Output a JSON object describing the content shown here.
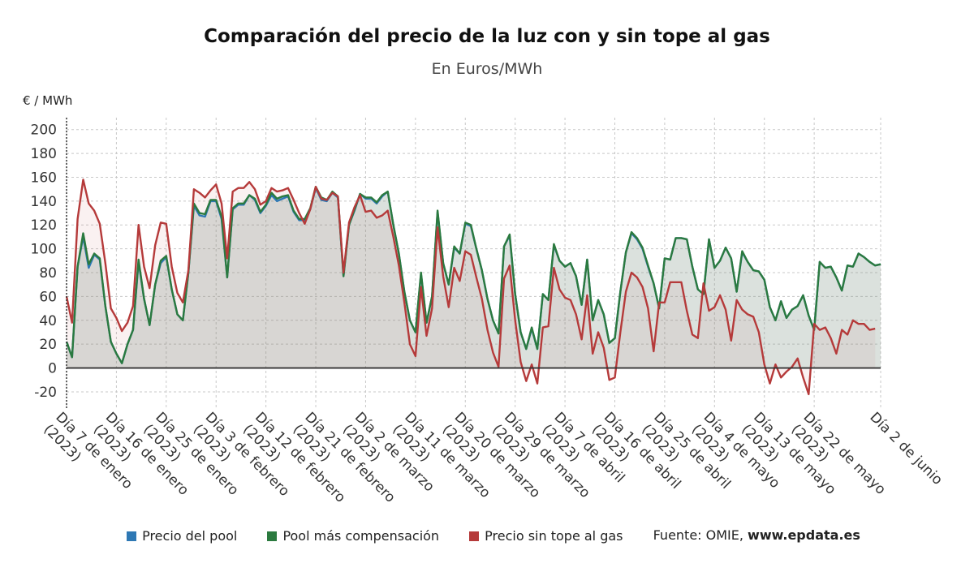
{
  "header": {
    "title": "Comparación del precio de la luz con y sin tope al gas",
    "subtitle": "En Euros/MWh"
  },
  "legend": {
    "items": [
      {
        "label": "Precio del pool",
        "color": "#2e78b4"
      },
      {
        "label": "Pool más compensación",
        "color": "#2b7a3f"
      },
      {
        "label": "Precio sin tope al gas",
        "color": "#b53a3a"
      }
    ],
    "source_prefix": "Fuente: OMIE,",
    "source_site": "www.epdata.es"
  },
  "chart_data": {
    "type": "line",
    "ylabel": "€ / MWh",
    "ylim": [
      -35,
      210
    ],
    "yticks": [
      200,
      180,
      160,
      140,
      120,
      100,
      80,
      60,
      40,
      20,
      0,
      -20
    ],
    "x_range": [
      0,
      147
    ],
    "xticks": [
      {
        "x": 0,
        "line1": "Día 7 de enero",
        "line2": "(2023)"
      },
      {
        "x": 9,
        "line1": "Día 16 de enero",
        "line2": "(2023)"
      },
      {
        "x": 18,
        "line1": "Día 25 de enero",
        "line2": "(2023)"
      },
      {
        "x": 27,
        "line1": "Día 3 de febrero",
        "line2": "(2023)"
      },
      {
        "x": 36,
        "line1": "Día 12 de febrero",
        "line2": "(2023)"
      },
      {
        "x": 45,
        "line1": "Día 21 de febrero",
        "line2": "(2023)"
      },
      {
        "x": 54,
        "line1": "Día 2 de marzo",
        "line2": "(2023)"
      },
      {
        "x": 63,
        "line1": "Día 11 de marzo",
        "line2": "(2023)"
      },
      {
        "x": 72,
        "line1": "Día 20 de marzo",
        "line2": "(2023)"
      },
      {
        "x": 81,
        "line1": "Día 29 de marzo",
        "line2": "(2023)"
      },
      {
        "x": 90,
        "line1": "Día 7 de abril",
        "line2": "(2023)"
      },
      {
        "x": 99,
        "line1": "Día 16 de abril",
        "line2": "(2023)"
      },
      {
        "x": 108,
        "line1": "Día 25 de abril",
        "line2": "(2023)"
      },
      {
        "x": 117,
        "line1": "Día 4 de mayo",
        "line2": "(2023)"
      },
      {
        "x": 126,
        "line1": "Día 13 de mayo",
        "line2": "(2023)"
      },
      {
        "x": 135,
        "line1": "Día 22 de mayo",
        "line2": "(2023)"
      },
      {
        "x": 147,
        "line1": "Día 2 de junio",
        "line2": ""
      }
    ],
    "series": [
      {
        "name": "Precio del pool",
        "color": "#2e78b4",
        "values": [
          22,
          9,
          85,
          110,
          84,
          95,
          91,
          52,
          22,
          12,
          4,
          20,
          32,
          89,
          58,
          36,
          70,
          88,
          93,
          66,
          45,
          40,
          80,
          136,
          128,
          127,
          140,
          140,
          125,
          76,
          133,
          137,
          137,
          145,
          141,
          130,
          136,
          145,
          140,
          142,
          144,
          131,
          124,
          124,
          133,
          151,
          141,
          140,
          147,
          143,
          77,
          120,
          132,
          146,
          142,
          142,
          138,
          144,
          148,
          120,
          96,
          64,
          40,
          30,
          79,
          38,
          60,
          131,
          88,
          70,
          101,
          96,
          121,
          119,
          100,
          82,
          58,
          40,
          29,
          102,
          111,
          62,
          30,
          16,
          33,
          16,
          62,
          57,
          103,
          90,
          85,
          88,
          77,
          53,
          91,
          40,
          57,
          45,
          21,
          25,
          64,
          97,
          113,
          108,
          100,
          85,
          71,
          50,
          92,
          91,
          109,
          109,
          108,
          85,
          66,
          62,
          108,
          84,
          90,
          101,
          92,
          64,
          97,
          89,
          82,
          81,
          74,
          51,
          40,
          56,
          42,
          49,
          52,
          61,
          44,
          32,
          89,
          84,
          85,
          76,
          65,
          86,
          85,
          96,
          93,
          89,
          86,
          87
        ]
      },
      {
        "name": "Pool más compensación",
        "color": "#2b7a3f",
        "values": [
          22,
          9,
          85,
          113,
          87,
          96,
          92,
          52,
          22,
          12,
          4,
          20,
          32,
          91,
          58,
          36,
          70,
          90,
          94,
          66,
          45,
          40,
          80,
          138,
          130,
          129,
          141,
          141,
          127,
          76,
          134,
          138,
          138,
          145,
          142,
          131,
          137,
          147,
          142,
          144,
          145,
          132,
          125,
          125,
          134,
          152,
          143,
          141,
          148,
          144,
          77,
          120,
          133,
          146,
          143,
          143,
          139,
          145,
          148,
          120,
          96,
          64,
          40,
          30,
          80,
          38,
          60,
          132,
          88,
          70,
          102,
          96,
          122,
          120,
          100,
          82,
          58,
          40,
          29,
          102,
          112,
          62,
          30,
          16,
          34,
          16,
          62,
          57,
          104,
          90,
          85,
          88,
          77,
          53,
          91,
          40,
          57,
          45,
          21,
          25,
          64,
          97,
          114,
          109,
          101,
          86,
          71,
          50,
          92,
          91,
          109,
          109,
          108,
          85,
          66,
          62,
          108,
          84,
          90,
          101,
          92,
          64,
          98,
          89,
          82,
          81,
          74,
          51,
          40,
          56,
          42,
          49,
          52,
          61,
          44,
          32,
          89,
          84,
          85,
          76,
          65,
          86,
          85,
          96,
          93,
          89,
          86,
          87
        ]
      },
      {
        "name": "Precio sin tope al gas",
        "color": "#b53a3a",
        "values": [
          60,
          38,
          125,
          158,
          138,
          132,
          121,
          88,
          50,
          42,
          31,
          38,
          52,
          120,
          85,
          67,
          103,
          122,
          121,
          85,
          63,
          55,
          82,
          150,
          147,
          143,
          149,
          154,
          138,
          92,
          148,
          151,
          151,
          156,
          150,
          137,
          140,
          151,
          148,
          149,
          151,
          141,
          130,
          121,
          133,
          152,
          142,
          141,
          147,
          144,
          80,
          122,
          135,
          145,
          131,
          132,
          126,
          128,
          132,
          110,
          86,
          55,
          20,
          10,
          68,
          27,
          50,
          118,
          77,
          51,
          84,
          73,
          98,
          95,
          76,
          58,
          32,
          13,
          1,
          75,
          86,
          40,
          5,
          -11,
          3,
          -13,
          34,
          35,
          84,
          66,
          59,
          57,
          45,
          24,
          61,
          12,
          30,
          17,
          -10,
          -8,
          30,
          64,
          80,
          76,
          68,
          50,
          14,
          55,
          55,
          72,
          72,
          72,
          48,
          28,
          25,
          71,
          48,
          51,
          61,
          49,
          23,
          57,
          49,
          45,
          43,
          30,
          3,
          -13,
          3,
          -8,
          -3,
          1,
          8,
          -8,
          -22,
          37,
          32,
          34,
          25,
          12,
          32,
          28,
          40,
          37,
          37,
          32,
          33
        ]
      }
    ]
  }
}
